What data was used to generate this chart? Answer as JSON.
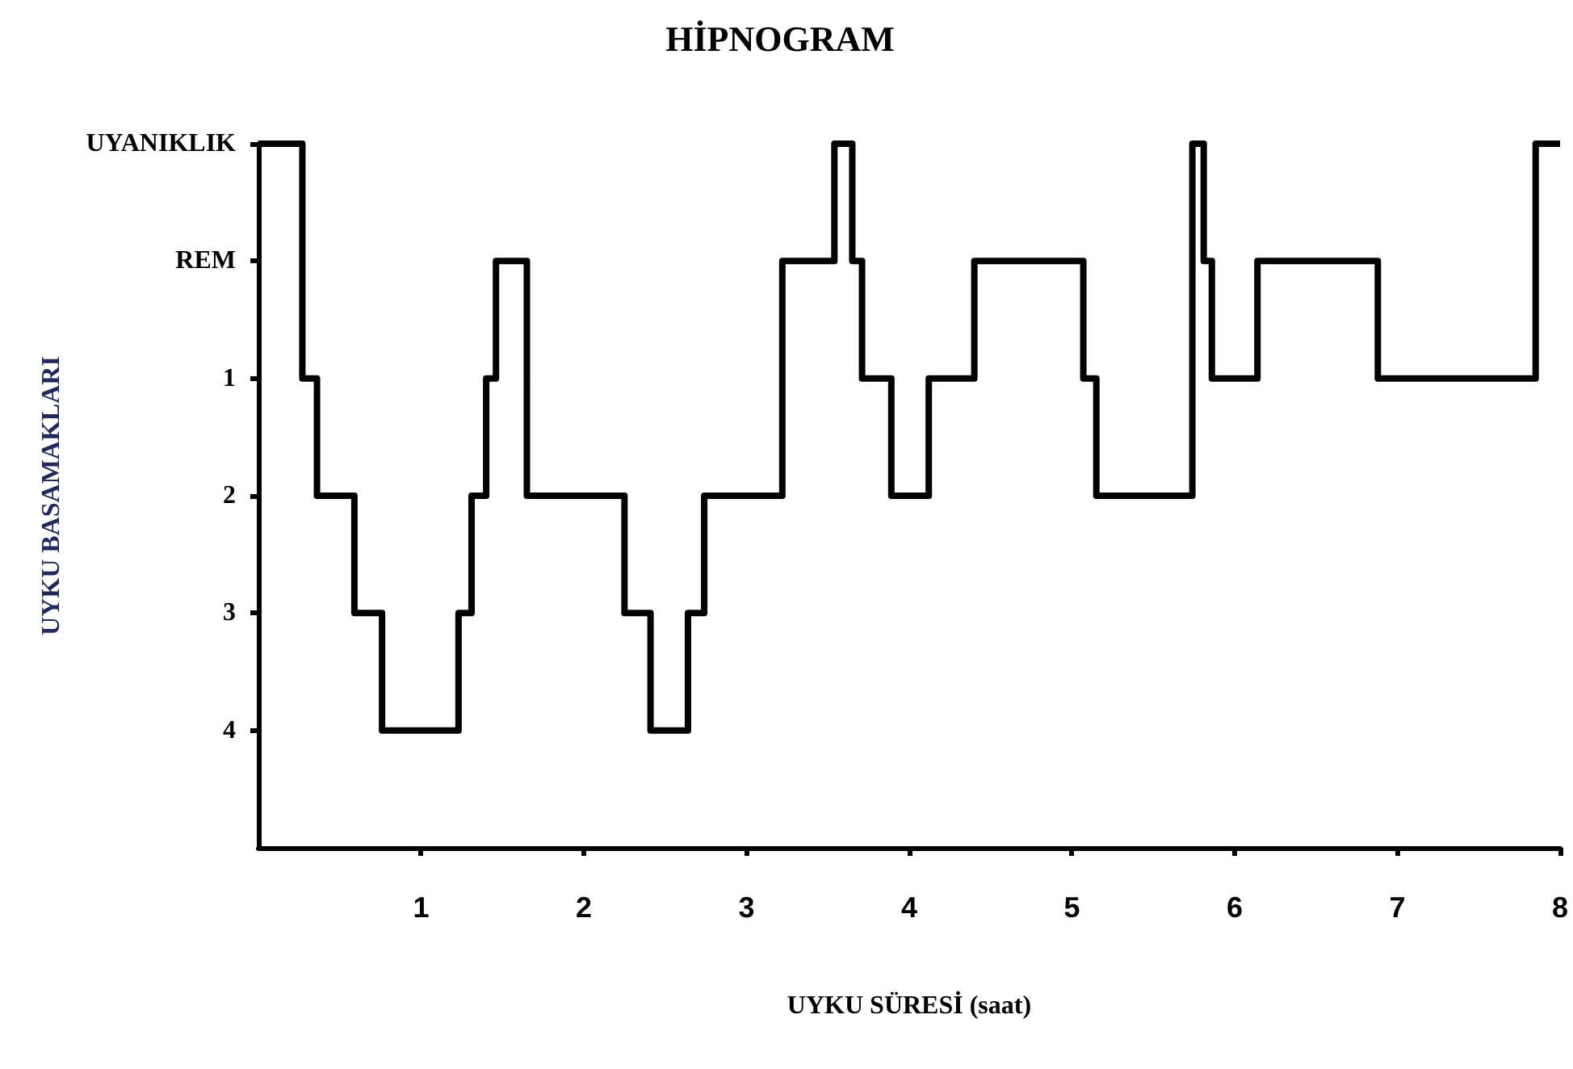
{
  "chart_data": {
    "type": "step",
    "title": "HİPNOGRAM",
    "xlabel": "UYKU SÜRESİ (saat)",
    "ylabel": "UYKU BASAMAKLARI",
    "x": [
      0.0,
      0.27,
      0.36,
      0.59,
      0.76,
      1.23,
      1.31,
      1.4,
      1.46,
      1.65,
      2.25,
      2.41,
      2.64,
      2.74,
      3.22,
      3.54,
      3.65,
      3.71,
      3.89,
      4.12,
      4.4,
      5.07,
      5.15,
      5.74,
      5.81,
      5.86,
      6.14,
      6.88,
      7.85,
      8.0
    ],
    "series": [
      {
        "color": "#000000",
        "values": [
          -1,
          1,
          2,
          3,
          4,
          3,
          2,
          1,
          0,
          2,
          3,
          4,
          3,
          2,
          0,
          -1,
          0,
          1,
          2,
          1,
          0,
          1,
          2,
          -1,
          0,
          1,
          0,
          1,
          -1,
          -1
        ]
      }
    ],
    "xlim": [
      0,
      8
    ],
    "xticks": [
      1,
      2,
      3,
      4,
      5,
      6,
      7,
      8
    ],
    "ylim": [
      5,
      -1
    ],
    "yticks": [
      {
        "value": -1,
        "label": "UYANIKLIK"
      },
      {
        "value": 0,
        "label": "REM"
      },
      1,
      2,
      3,
      4
    ],
    "grid": false,
    "marker": "none",
    "line_style": "solid"
  }
}
